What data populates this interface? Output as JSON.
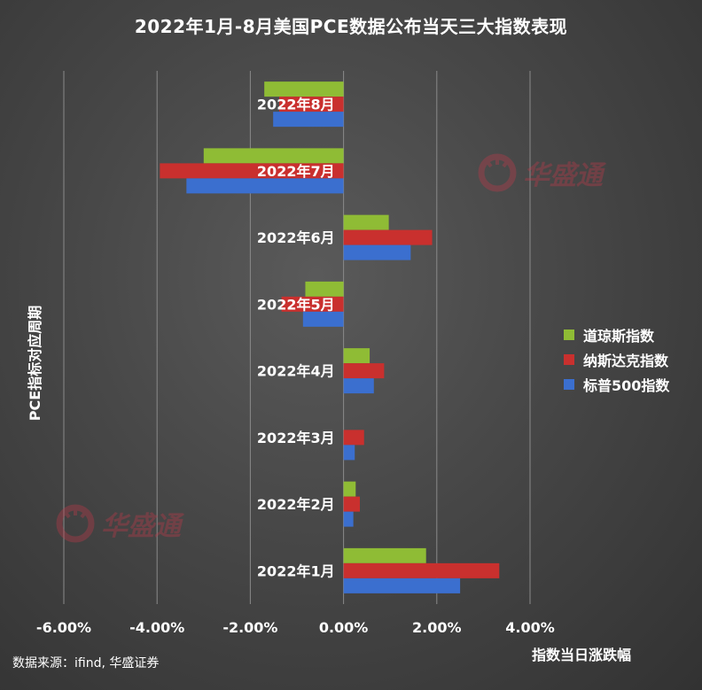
{
  "chart_data": {
    "type": "bar",
    "orientation": "horizontal",
    "title": "2022年1月-8月美国PCE数据公布当天三大指数表现",
    "xlabel": "指数当日涨跌幅",
    "ylabel": "PCE指标对应周期",
    "categories": [
      "2022年8月",
      "2022年7月",
      "2022年6月",
      "2022年5月",
      "2022年4月",
      "2022年3月",
      "2022年2月",
      "2022年1月"
    ],
    "series": [
      {
        "name": "道琼斯指数",
        "color": "#8fbc35",
        "values": [
          -1.7,
          -3.0,
          0.97,
          -0.82,
          0.56,
          0.0,
          0.26,
          1.77
        ]
      },
      {
        "name": "纳斯达克指数",
        "color": "#c9302e",
        "values": [
          -1.38,
          -3.94,
          1.9,
          -1.33,
          0.87,
          0.44,
          0.35,
          3.34
        ]
      },
      {
        "name": "标普500指数",
        "color": "#3b6fcf",
        "values": [
          -1.51,
          -3.37,
          1.44,
          -0.87,
          0.65,
          0.24,
          0.21,
          2.5
        ]
      }
    ],
    "xlim": [
      -6.0,
      4.0
    ],
    "xticks": [
      "-6.00%",
      "-4.00%",
      "-2.00%",
      "0.00%",
      "2.00%",
      "4.00%"
    ],
    "xtick_values": [
      -6,
      -4,
      -2,
      0,
      2,
      4
    ],
    "grid": "vertical",
    "legend_position": "right"
  },
  "source_text": "数据来源：ifind, 华盛证券",
  "watermark_text": "华盛通"
}
